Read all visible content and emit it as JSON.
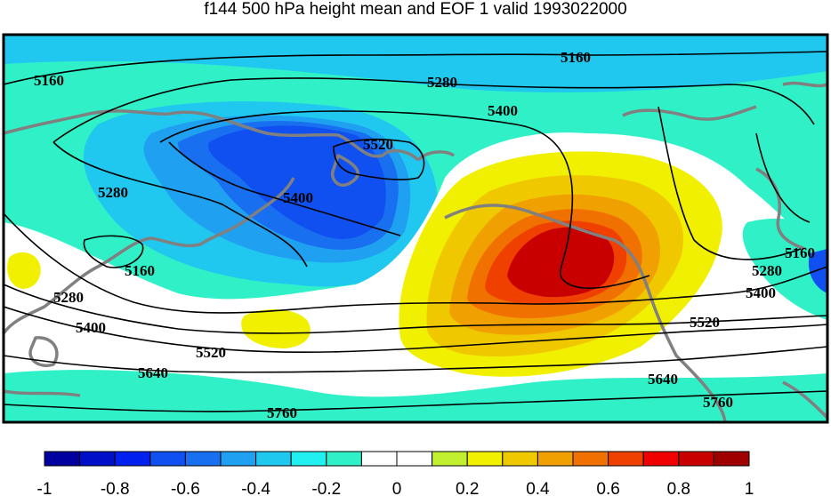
{
  "title": "f144 500 hPa height mean and EOF 1 valid 1993022000",
  "colorbar": {
    "colors": [
      "#0000a0",
      "#0010c8",
      "#0020f0",
      "#1050f0",
      "#1870f0",
      "#20a0f0",
      "#20c8f0",
      "#20f0f0",
      "#30f0c8",
      "#ffffff",
      "#ffffff",
      "#c0f030",
      "#f0f000",
      "#f0c800",
      "#f0a000",
      "#f07000",
      "#f04000",
      "#f00000",
      "#c80000",
      "#a00000"
    ],
    "tick_labels": [
      "-1",
      "-0.8",
      "-0.6",
      "-0.4",
      "-0.2",
      "0",
      "0.2",
      "0.4",
      "0.6",
      "0.8",
      "1"
    ]
  },
  "contour_labels": [
    "5160",
    "5280",
    "5400",
    "5520",
    "5640",
    "5760"
  ],
  "map": {
    "ocean_color": "#ffffff",
    "coastline_color": "#808080",
    "contour_color": "#000000"
  }
}
